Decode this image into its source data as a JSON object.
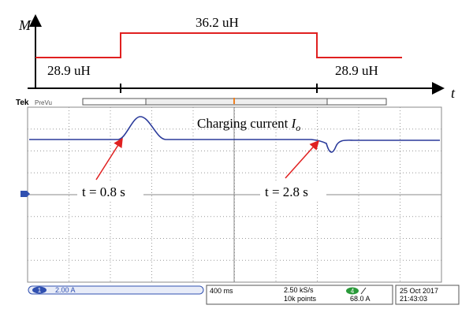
{
  "top_plot": {
    "y_label": "M",
    "x_label": "t",
    "levels": [
      "28.9 uH",
      "36.2 uH",
      "28.9 uH"
    ]
  },
  "scope": {
    "brand": "Tek",
    "mode": "PreVu",
    "trace_label": {
      "text": "Charging current",
      "symbol": "I",
      "subscript": "o"
    },
    "annotations": [
      "t = 0.8 s",
      "t = 2.8 s"
    ],
    "status": {
      "channel": "1",
      "scale": "2.00 A",
      "timebase": "400 ms",
      "sample_rate": "2.50 kS/s",
      "record": "10k points",
      "trigger_channel": "4",
      "trigger_level": "68.0 A",
      "date": "25 Oct 2017",
      "time": "21:43:03"
    }
  }
}
